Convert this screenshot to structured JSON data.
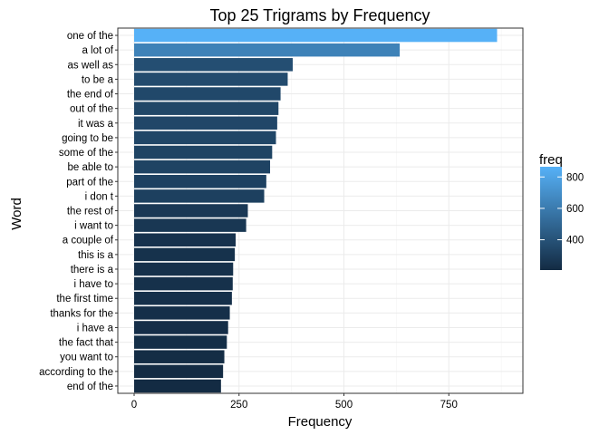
{
  "chart_data": {
    "type": "bar",
    "orientation": "horizontal",
    "title": "Top 25 Trigrams by Frequency",
    "xlabel": "Frequency",
    "ylabel": "Word",
    "xlim": [
      0,
      900
    ],
    "xticks": [
      0,
      250,
      500,
      750
    ],
    "grid": true,
    "legend": {
      "title": "freq",
      "position": "right",
      "ticks": [
        400,
        600,
        800
      ],
      "color_low": "#132B43",
      "color_high": "#56B1F7",
      "range": [
        207,
        865
      ]
    },
    "categories": [
      "one of the",
      "a lot of",
      "as well as",
      "to be a",
      "the end of",
      "out of the",
      "it was a",
      "going to be",
      "some of the",
      "be able to",
      "part of the",
      "i don t",
      "the rest of",
      "i want to",
      "a couple of",
      "this is a",
      "there is a",
      "i have to",
      "the first time",
      "thanks for the",
      "i have a",
      "the fact that",
      "you want to",
      "according to the",
      "end of the"
    ],
    "values": [
      865,
      633,
      378,
      366,
      349,
      344,
      341,
      338,
      329,
      324,
      315,
      310,
      271,
      267,
      242,
      240,
      236,
      235,
      233,
      228,
      224,
      221,
      215,
      212,
      207
    ]
  }
}
